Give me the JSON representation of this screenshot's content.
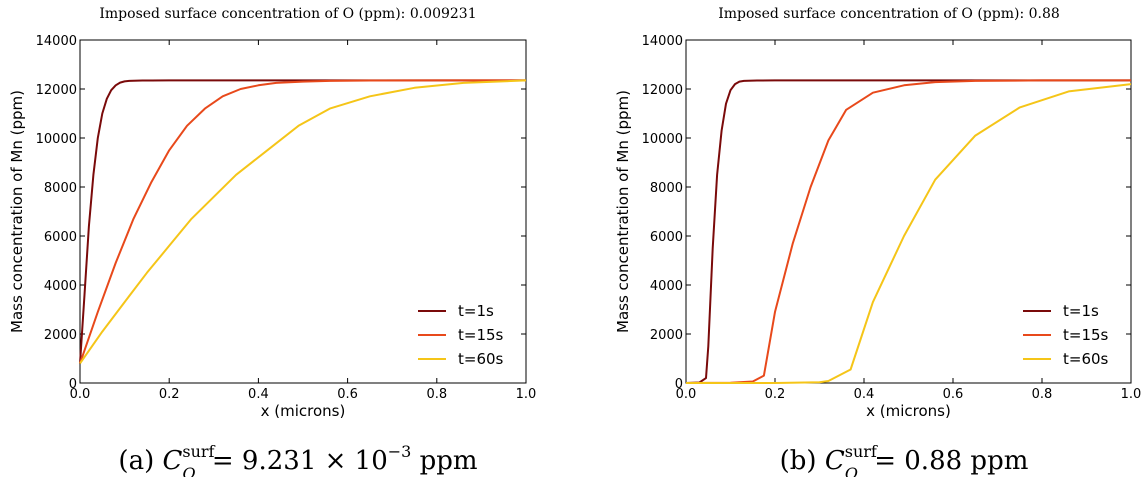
{
  "chart_data": [
    {
      "type": "line",
      "title": "Imposed surface concentration of O (ppm): 0.009231",
      "caption": {
        "prefix": "(a) ",
        "var": "C",
        "sub": "O",
        "sup": "surf",
        "rest": " = 9.231 × 10",
        "exp": "−3",
        "unit": " ppm"
      },
      "xlabel": "x (microns)",
      "ylabel": "Mass concentration of Mn (ppm)",
      "xlim": [
        0.0,
        1.0
      ],
      "ylim": [
        0,
        14000
      ],
      "xticks": [
        "0.0",
        "0.2",
        "0.4",
        "0.6",
        "0.8",
        "1.0"
      ],
      "yticks": [
        "0",
        "2000",
        "4000",
        "6000",
        "8000",
        "10000",
        "12000",
        "14000"
      ],
      "grid": false,
      "legend_position": "lower-right",
      "series": [
        {
          "name": "t=1s",
          "color": "#7a0a0a",
          "x": [
            0.0,
            0.01,
            0.02,
            0.03,
            0.04,
            0.05,
            0.06,
            0.07,
            0.08,
            0.09,
            0.1,
            0.11,
            0.12,
            0.14,
            0.16,
            0.2,
            0.3,
            0.5,
            1.0
          ],
          "y": [
            800,
            3600,
            6400,
            8500,
            10000,
            11000,
            11600,
            11950,
            12150,
            12260,
            12310,
            12330,
            12340,
            12345,
            12348,
            12350,
            12350,
            12350,
            12350
          ]
        },
        {
          "name": "t=15s",
          "color": "#e8491b",
          "x": [
            0.0,
            0.04,
            0.08,
            0.12,
            0.16,
            0.2,
            0.24,
            0.28,
            0.32,
            0.36,
            0.4,
            0.44,
            0.5,
            0.56,
            0.65,
            0.8,
            1.0
          ],
          "y": [
            800,
            2900,
            4900,
            6700,
            8200,
            9500,
            10500,
            11200,
            11700,
            12000,
            12150,
            12250,
            12300,
            12330,
            12345,
            12350,
            12350
          ]
        },
        {
          "name": "t=60s",
          "color": "#f5c518",
          "x": [
            0.0,
            0.05,
            0.1,
            0.15,
            0.2,
            0.25,
            0.3,
            0.35,
            0.42,
            0.49,
            0.56,
            0.65,
            0.75,
            0.86,
            1.0
          ],
          "y": [
            800,
            2100,
            3300,
            4500,
            5600,
            6700,
            7600,
            8500,
            9500,
            10500,
            11200,
            11700,
            12050,
            12250,
            12350
          ]
        }
      ]
    },
    {
      "type": "line",
      "title": "Imposed surface concentration of O (ppm): 0.88",
      "caption": {
        "prefix": "(b) ",
        "var": "C",
        "sub": "O",
        "sup": "surf",
        "rest": " = 0.88 ppm",
        "exp": "",
        "unit": ""
      },
      "xlabel": "x (microns)",
      "ylabel": "Mass concentration of Mn (ppm)",
      "xlim": [
        0.0,
        1.0
      ],
      "ylim": [
        0,
        14000
      ],
      "xticks": [
        "0.0",
        "0.2",
        "0.4",
        "0.6",
        "0.8",
        "1.0"
      ],
      "yticks": [
        "0",
        "2000",
        "4000",
        "6000",
        "8000",
        "10000",
        "12000",
        "14000"
      ],
      "grid": false,
      "legend_position": "lower-right",
      "series": [
        {
          "name": "t=1s",
          "color": "#7a0a0a",
          "x": [
            0.0,
            0.03,
            0.045,
            0.05,
            0.06,
            0.07,
            0.08,
            0.09,
            0.1,
            0.11,
            0.12,
            0.13,
            0.14,
            0.16,
            0.2,
            0.3,
            0.5,
            1.0
          ],
          "y": [
            0,
            20,
            200,
            1500,
            5500,
            8500,
            10300,
            11400,
            11950,
            12200,
            12300,
            12330,
            12340,
            12348,
            12350,
            12350,
            12350,
            12350
          ]
        },
        {
          "name": "t=15s",
          "color": "#e8491b",
          "x": [
            0.0,
            0.1,
            0.15,
            0.175,
            0.2,
            0.24,
            0.28,
            0.32,
            0.36,
            0.42,
            0.49,
            0.56,
            0.65,
            0.8,
            1.0
          ],
          "y": [
            0,
            10,
            60,
            300,
            2900,
            5700,
            8000,
            9900,
            11150,
            11850,
            12150,
            12280,
            12330,
            12350,
            12350
          ]
        },
        {
          "name": "t=60s",
          "color": "#f5c518",
          "x": [
            0.0,
            0.2,
            0.3,
            0.32,
            0.37,
            0.42,
            0.49,
            0.56,
            0.65,
            0.75,
            0.86,
            1.0
          ],
          "y": [
            0,
            0,
            30,
            80,
            550,
            3300,
            6000,
            8300,
            10100,
            11250,
            11900,
            12200
          ]
        }
      ]
    }
  ]
}
